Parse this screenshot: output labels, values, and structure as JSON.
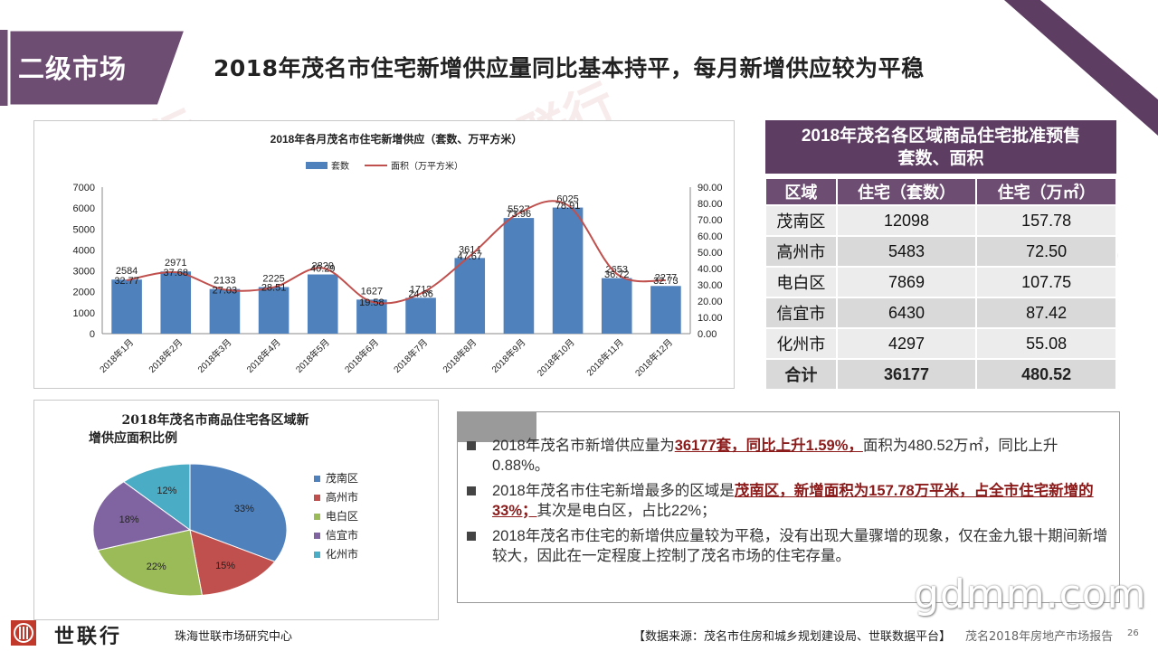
{
  "section_label": "二级市场",
  "headline": "2018年茂名市住宅新增供应量同比基本持平，每月新增供应较为平稳",
  "watermark_text": "世联行",
  "colors": {
    "purple": "#6d4d72",
    "bar": "#4f81bd",
    "line": "#c0504d",
    "highlight": "#8b1a1a"
  },
  "chart_data": [
    {
      "type": "bar",
      "title": "2018年各月茂名市住宅新增供应（套数、万平方米）",
      "categories": [
        "2018年1月",
        "2018年2月",
        "2018年3月",
        "2018年4月",
        "2018年5月",
        "2018年6月",
        "2018年7月",
        "2018年8月",
        "2018年9月",
        "2018年10月",
        "2018年11月",
        "2018年12月"
      ],
      "series": [
        {
          "name": "套数",
          "type": "bar",
          "axis": "left",
          "values": [
            2584,
            2971,
            2133,
            2225,
            2829,
            1627,
            1712,
            3614,
            5527,
            6025,
            2653,
            2277
          ]
        },
        {
          "name": "面积（万平方米）",
          "type": "line",
          "axis": "right",
          "values": [
            32.77,
            37.68,
            27.03,
            28.51,
            40.29,
            19.58,
            24.66,
            47.67,
            73.96,
            78.91,
            36.72,
            32.73
          ]
        }
      ],
      "ylim": [
        0,
        7000
      ],
      "y_ticks": [
        "0",
        "1000",
        "2000",
        "3000",
        "4000",
        "5000",
        "6000",
        "7000"
      ],
      "y2lim": [
        0,
        90
      ],
      "y2_ticks": [
        "0.00",
        "10.00",
        "20.00",
        "30.00",
        "40.00",
        "50.00",
        "60.00",
        "70.00",
        "80.00",
        "90.00"
      ],
      "legend_position": "top"
    },
    {
      "type": "pie",
      "title": "2018年茂名市商品住宅各区域新增供应面积比例",
      "labels": [
        "茂南区",
        "高州市",
        "电白区",
        "信宜市",
        "化州市"
      ],
      "values": [
        33,
        15,
        22,
        18,
        12
      ],
      "value_labels": [
        "33%",
        "15%",
        "22%",
        "18%",
        "12%"
      ],
      "colors": [
        "#4f81bd",
        "#c0504d",
        "#9bbb59",
        "#8064a2",
        "#4bacc6"
      ],
      "legend_position": "right"
    }
  ],
  "table": {
    "title_line1": "2018年茂名各区域商品住宅批准预售",
    "title_line2": "套数、面积",
    "headers": [
      "区域",
      "住宅（套数）",
      "住宅（万㎡）"
    ],
    "rows": [
      [
        "茂南区",
        "12098",
        "157.78"
      ],
      [
        "高州市",
        "5483",
        "72.50"
      ],
      [
        "电白区",
        "7869",
        "107.75"
      ],
      [
        "信宜市",
        "6430",
        "87.42"
      ],
      [
        "化州市",
        "4297",
        "55.08"
      ]
    ],
    "total": [
      "合计",
      "36177",
      "480.52"
    ]
  },
  "bullets": [
    {
      "pre": "2018年茂名市新增供应量为",
      "hl": "36177套，同比上升1.59%，",
      "post": "面积为480.52万㎡，同比上升0.88%。"
    },
    {
      "pre": "2018年茂名市住宅新增最多的区域是",
      "hl": "茂南区，新增面积为157.78万平米，占全市住宅新增的33%；",
      "post": "其次是电白区，占比22%；"
    },
    {
      "pre": "2018年茂名市住宅的新增供应量较为平稳，没有出现大量骤增的现象，仅在金九银十期间新增较大，因此在一定程度上控制了茂名市场的住宅存量。",
      "hl": "",
      "post": ""
    }
  ],
  "footer": {
    "brand": "世联行",
    "dept": "珠海世联市场研究中心",
    "source": "【数据来源：茂名市住房和城乡规划建设局、世联数据平台】",
    "report": "茂名2018年房地产市场报告",
    "page": "26"
  },
  "site_watermark": "gdmm.com"
}
